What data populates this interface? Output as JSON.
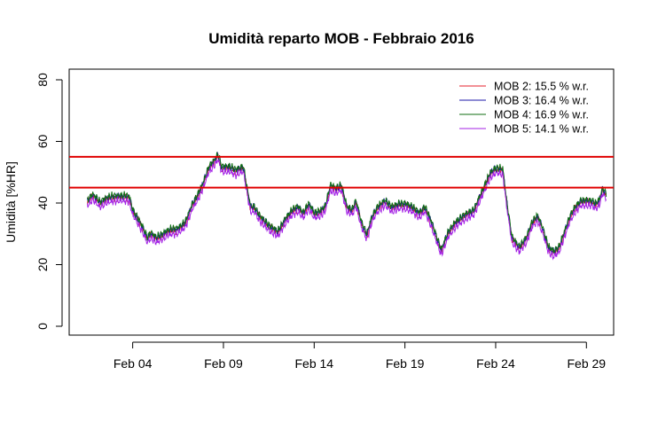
{
  "chart_data": {
    "type": "line",
    "title": "Umidità reparto MOB - Febbraio 2016",
    "xlabel": "",
    "ylabel": "Umidità [%HR]",
    "ylim": [
      0,
      80
    ],
    "xlim": [
      0.5,
      30.5
    ],
    "yticks": [
      0,
      20,
      40,
      60,
      80
    ],
    "xticks": [
      {
        "day": 4,
        "label": "Feb 04"
      },
      {
        "day": 9,
        "label": "Feb 09"
      },
      {
        "day": 14,
        "label": "Feb 14"
      },
      {
        "day": 19,
        "label": "Feb 19"
      },
      {
        "day": 24,
        "label": "Feb 24"
      },
      {
        "day": 29,
        "label": "Feb 29"
      }
    ],
    "grid": false,
    "legend_position": "top-right",
    "thresholds": [
      {
        "y": 55,
        "color": "#e00000"
      },
      {
        "y": 45,
        "color": "#e00000"
      }
    ],
    "base_profile": {
      "x": [
        1.5,
        1.8,
        2.2,
        2.6,
        3.0,
        3.4,
        3.8,
        4.0,
        4.2,
        4.5,
        4.8,
        5.0,
        5.3,
        5.6,
        6.0,
        6.5,
        6.9,
        7.3,
        7.6,
        7.9,
        8.2,
        8.5,
        8.7,
        8.9,
        9.3,
        9.7,
        10.1,
        10.3,
        10.5,
        10.7,
        11.0,
        11.5,
        12.0,
        12.4,
        12.8,
        13.1,
        13.4,
        13.7,
        14.0,
        14.3,
        14.6,
        14.9,
        15.2,
        15.5,
        15.8,
        16.1,
        16.3,
        16.6,
        16.9,
        17.2,
        17.5,
        17.9,
        18.3,
        18.7,
        19.0,
        19.4,
        19.8,
        20.1,
        20.4,
        20.7,
        21.0,
        21.4,
        21.8,
        22.2,
        22.5,
        22.8,
        23.1,
        23.4,
        23.7,
        24.0,
        24.2,
        24.4,
        24.6,
        24.9,
        25.3,
        25.7,
        26.0,
        26.3,
        26.6,
        26.9,
        27.2,
        27.5,
        27.8,
        28.1,
        28.4,
        28.7,
        29.0,
        29.3,
        29.5,
        29.7,
        29.9,
        30.1
      ],
      "y": [
        40,
        42,
        39.5,
        41,
        41.5,
        41.5,
        41.5,
        37,
        35,
        32,
        28,
        29.5,
        28,
        29,
        30.5,
        31,
        33,
        39,
        42,
        46,
        51,
        53,
        55,
        51,
        51,
        50,
        51,
        44,
        38,
        38,
        35,
        32,
        30,
        34,
        37,
        38,
        36,
        39,
        36,
        36.5,
        38,
        45,
        44,
        45,
        38,
        37,
        40,
        33,
        29,
        35,
        38,
        40,
        38,
        39,
        39,
        38,
        36,
        38,
        34,
        29,
        24,
        30,
        33,
        35,
        36,
        37,
        41,
        45,
        49,
        50.5,
        50.5,
        50,
        40,
        28,
        25,
        28,
        33,
        35,
        31,
        25,
        23.5,
        25,
        30,
        35,
        38,
        40,
        40,
        40,
        39,
        40,
        44,
        42
      ]
    },
    "series": [
      {
        "name": "MOB 2:  15.5 % w.r.",
        "color": "#e5202c",
        "offset": 0.2,
        "phase": 0.5
      },
      {
        "name": "MOB 3:  16.4 % w.r.",
        "color": "#1d1aa8",
        "offset": 0.6,
        "phase": 1.7
      },
      {
        "name": "MOB 4:  16.9 % w.r.",
        "color": "#0f6e12",
        "offset": 1.0,
        "phase": 2.9
      },
      {
        "name": "MOB 5:  14.1 % w.r.",
        "color": "#a322e6",
        "offset": -0.9,
        "phase": 4.1
      }
    ]
  }
}
